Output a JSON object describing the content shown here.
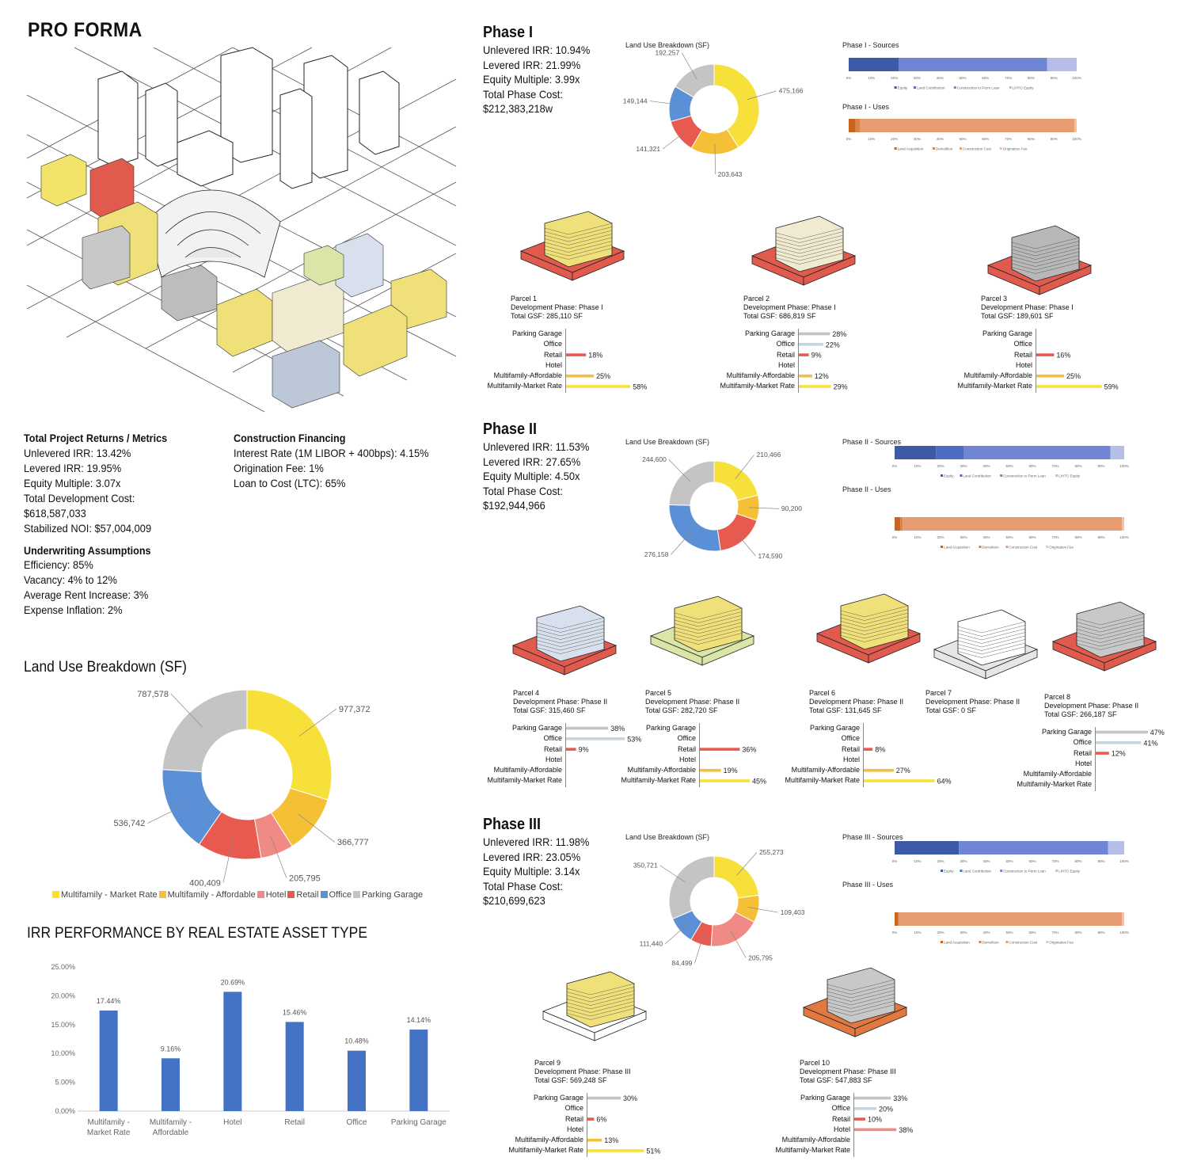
{
  "page_title": "PRO FORMA",
  "colors": {
    "market": "#f7e03a",
    "affordable": "#f5c036",
    "hotel": "#f08a84",
    "retail": "#e85a4f",
    "office": "#5b8fd6",
    "parking": "#c4c4c4",
    "bar_blue": "#4472c4",
    "equity": "#3c5aa6",
    "land_contrib": "#4a6cc2",
    "perm_loan": "#7086d4",
    "lihtc": "#b4bee8",
    "land_acq": "#c8641e",
    "demolition": "#de8348",
    "construction": "#e89c72",
    "origination": "#f0c0a4"
  },
  "total_returns": {
    "heading": "Total Project Returns / Metrics",
    "lines": [
      "Unlevered IRR: 13.42%",
      "Levered IRR: 19.95%",
      "Equity Multiple: 3.07x",
      "Total Development Cost:",
      "$618,587,033",
      "Stabilized NOI: $57,004,009"
    ]
  },
  "construction_financing": {
    "heading": "Construction Financing",
    "lines": [
      "Interest Rate (1M LIBOR + 400bps): 4.15%",
      "Origination Fee: 1%",
      "Loan to Cost (LTC): 65%"
    ]
  },
  "underwriting": {
    "heading": "Underwriting Assumptions",
    "lines": [
      "Efficiency: 85%",
      "Vacancy: 4% to 12%",
      "Average Rent Increase: 3%",
      "Expense Inflation: 2%"
    ]
  },
  "land_use_total": {
    "title": "Land Use Breakdown (SF)",
    "legend": [
      "Multifamily - Market Rate",
      "Multifamily - Affordable",
      "Hotel",
      "Retail",
      "Office",
      "Parking Garage"
    ]
  },
  "irr_title": "IRR PERFORMANCE BY REAL ESTATE ASSET TYPE",
  "phases": [
    {
      "title": "Phase I",
      "lines": [
        "Unlevered IRR: 10.94%",
        "Levered IRR: 21.99%",
        "Equity Multiple: 3.99x",
        "Total Phase Cost:",
        "$212,383,218w"
      ],
      "donut_title": "Land Use Breakdown (SF)",
      "sources_title": "Phase I - Sources",
      "uses_title": "Phase I - Uses"
    },
    {
      "title": "Phase II",
      "lines": [
        "Unlevered IRR: 11.53%",
        "Levered IRR: 27.65%",
        "Equity Multiple: 4.50x",
        "Total Phase Cost:",
        "$192,944,966"
      ],
      "donut_title": "Land Use Breakdown (SF)",
      "sources_title": "Phase II - Sources",
      "uses_title": "Phase II - Uses"
    },
    {
      "title": "Phase III",
      "lines": [
        "Unlevered IRR: 11.98%",
        "Levered IRR: 23.05%",
        "Equity Multiple: 3.14x",
        "Total Phase Cost:",
        "$210,699,623"
      ],
      "donut_title": "Land Use Breakdown (SF)",
      "sources_title": "Phase III - Sources",
      "uses_title": "Phase III - Uses"
    }
  ],
  "axis_pct_ticks": [
    "0%",
    "10%",
    "20%",
    "30%",
    "40%",
    "50%",
    "60%",
    "70%",
    "80%",
    "90%",
    "100%"
  ],
  "sources_legend": [
    "Equity",
    "Land Contribution",
    "Construction to Perm Loan",
    "LIHTC Equity"
  ],
  "uses_legend": [
    "Land Acquisition",
    "Demolition",
    "Construction Cost",
    "Origination Fee"
  ],
  "parcel_row_labels": [
    "Parking Garage",
    "Office",
    "Retail",
    "Hotel",
    "Multifamily-Affordable",
    "Multifamily-Market Rate"
  ],
  "parcels": [
    {
      "name": "Parcel 1",
      "phase": "Development Phase: Phase I",
      "gsf": "Total GSF: 285,110 SF"
    },
    {
      "name": "Parcel 2",
      "phase": "Development Phase: Phase I",
      "gsf": "Total GSF: 686,819 SF"
    },
    {
      "name": "Parcel 3",
      "phase": "Development Phase: Phase I",
      "gsf": "Total GSF: 189,601 SF"
    },
    {
      "name": "Parcel 4",
      "phase": "Development Phase: Phase II",
      "gsf": "Total GSF: 315,460 SF"
    },
    {
      "name": "Parcel 5",
      "phase": "Development Phase: Phase II",
      "gsf": "Total GSF: 282,720 SF"
    },
    {
      "name": "Parcel 6",
      "phase": "Development Phase: Phase II",
      "gsf": "Total GSF: 131,645 SF"
    },
    {
      "name": "Parcel 7",
      "phase": "Development Phase: Phase II",
      "gsf": "Total GSF: 0 SF"
    },
    {
      "name": "Parcel 8",
      "phase": "Development Phase: Phase II",
      "gsf": "Total GSF: 266,187 SF"
    },
    {
      "name": "Parcel 9",
      "phase": "Development Phase: Phase III",
      "gsf": "Total GSF: 569,248 SF"
    },
    {
      "name": "Parcel 10",
      "phase": "Development Phase: Phase III",
      "gsf": "Total GSF: 547,883 SF"
    }
  ],
  "chart_data": [
    {
      "id": "total_land_use",
      "type": "pie",
      "title": "Land Use Breakdown (SF)",
      "categories": [
        "Multifamily - Market Rate",
        "Multifamily - Affordable",
        "Hotel",
        "Retail",
        "Office",
        "Parking Garage"
      ],
      "values": [
        977372,
        366777,
        205795,
        400409,
        536742,
        787578
      ],
      "labels": [
        "977,372",
        "366,777",
        "205,795",
        "400,409",
        "536,742",
        "787,578"
      ]
    },
    {
      "id": "irr_by_asset",
      "type": "bar",
      "title": "IRR PERFORMANCE BY REAL ESTATE ASSET TYPE",
      "categories": [
        "Multifamily - Market Rate",
        "Multifamily - Affordable",
        "Hotel",
        "Retail",
        "Office",
        "Parking Garage"
      ],
      "values": [
        17.44,
        9.16,
        20.69,
        15.46,
        10.48,
        14.14
      ],
      "labels": [
        "17.44%",
        "9.16%",
        "20.69%",
        "15.46%",
        "10.48%",
        "14.14%"
      ],
      "ylim": [
        0,
        25
      ],
      "yticks": [
        "0.00%",
        "5.00%",
        "10.00%",
        "15.00%",
        "20.00%",
        "25.00%"
      ]
    },
    {
      "id": "phase1_land_use",
      "type": "pie",
      "title": "Land Use Breakdown (SF)",
      "values": [
        475166,
        203643,
        141321,
        149144,
        192257
      ],
      "labels": [
        "475,166",
        "203,643",
        "141,321",
        "149,144",
        "192,257"
      ],
      "categories": [
        "Multifamily - Market Rate",
        "Multifamily - Affordable",
        "Retail",
        "Office",
        "Parking Garage"
      ]
    },
    {
      "id": "phase2_land_use",
      "type": "pie",
      "title": "Land Use Breakdown (SF)",
      "values": [
        210466,
        90200,
        174590,
        276158,
        244600
      ],
      "labels": [
        "210,466",
        "90,200",
        "174,590",
        "276,158",
        "244,600"
      ],
      "categories": [
        "Multifamily - Market Rate",
        "Multifamily - Affordable",
        "Retail",
        "Office",
        "Parking Garage"
      ]
    },
    {
      "id": "phase3_land_use",
      "type": "pie",
      "title": "Land Use Breakdown (SF)",
      "values": [
        255273,
        109403,
        205795,
        84499,
        111440,
        350721
      ],
      "labels": [
        "255,273",
        "109,403",
        "205,795",
        "84,499",
        "111,440",
        "350,721"
      ],
      "categories": [
        "Multifamily - Market Rate",
        "Multifamily - Affordable",
        "Hotel",
        "Retail",
        "Office",
        "Parking Garage"
      ]
    },
    {
      "id": "phase_sources",
      "type": "bar",
      "series_order": [
        "Equity",
        "Land Contribution",
        "Construction to Perm Loan",
        "LIHTC Equity"
      ],
      "phase1": [
        22,
        0,
        65,
        13
      ],
      "phase2": [
        18,
        12,
        64,
        6
      ],
      "phase3": [
        28,
        0,
        65,
        7
      ]
    },
    {
      "id": "phase_uses",
      "type": "bar",
      "series_order": [
        "Land Acquisition",
        "Demolition",
        "Construction Cost",
        "Origination Fee"
      ],
      "phase1": [
        3,
        2,
        94,
        1
      ],
      "phase2": [
        2.5,
        1,
        95.5,
        1
      ],
      "phase3": [
        1.5,
        0.5,
        97,
        1
      ]
    },
    {
      "id": "parcel_breakdowns",
      "type": "bar",
      "rows": [
        "Parking Garage",
        "Office",
        "Retail",
        "Hotel",
        "Multifamily-Affordable",
        "Multifamily-Market Rate"
      ],
      "parcels": [
        {
          "parcel": "Parcel 1",
          "values": [
            null,
            null,
            18,
            null,
            25,
            58
          ]
        },
        {
          "parcel": "Parcel 2",
          "values": [
            28,
            22,
            9,
            null,
            12,
            29
          ]
        },
        {
          "parcel": "Parcel 3",
          "values": [
            null,
            null,
            16,
            null,
            25,
            59
          ]
        },
        {
          "parcel": "Parcel 4",
          "values": [
            38,
            53,
            9,
            null,
            null,
            null
          ]
        },
        {
          "parcel": "Parcel 5",
          "values": [
            null,
            null,
            36,
            null,
            19,
            45
          ]
        },
        {
          "parcel": "Parcel 6",
          "values": [
            null,
            null,
            8,
            null,
            27,
            64
          ]
        },
        {
          "parcel": "Parcel 8",
          "values": [
            47,
            41,
            12,
            null,
            null,
            null
          ]
        },
        {
          "parcel": "Parcel 9",
          "values": [
            30,
            null,
            6,
            null,
            13,
            51
          ]
        },
        {
          "parcel": "Parcel 10",
          "values": [
            33,
            20,
            10,
            38,
            null,
            null
          ]
        }
      ]
    }
  ]
}
